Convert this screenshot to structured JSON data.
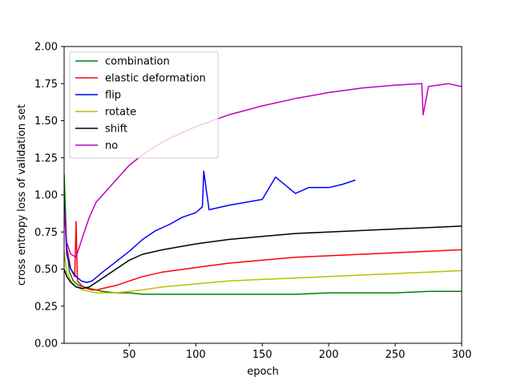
{
  "chart_data": {
    "type": "line",
    "title": "",
    "xlabel": "epoch",
    "ylabel": "cross entropy loss of validation set",
    "xlim": [
      1,
      300
    ],
    "ylim": [
      0.0,
      2.0
    ],
    "xticks": [
      50,
      100,
      150,
      200,
      250,
      300
    ],
    "xtick_labels": [
      "50",
      "100",
      "150",
      "200",
      "250",
      "300"
    ],
    "yticks": [
      0.0,
      0.25,
      0.5,
      0.75,
      1.0,
      1.25,
      1.5,
      1.75,
      2.0
    ],
    "ytick_labels": [
      "0.00",
      "0.25",
      "0.50",
      "0.75",
      "1.00",
      "1.25",
      "1.50",
      "1.75",
      "2.00"
    ],
    "grid": false,
    "legend_position": "upper-left",
    "series": [
      {
        "name": "combination",
        "color": "#008000",
        "x": [
          1,
          3,
          5,
          8,
          12,
          16,
          20,
          25,
          30,
          40,
          50,
          60,
          75,
          100,
          125,
          150,
          175,
          200,
          225,
          250,
          275,
          300
        ],
        "y": [
          1.14,
          0.65,
          0.48,
          0.42,
          0.39,
          0.38,
          0.37,
          0.36,
          0.35,
          0.34,
          0.34,
          0.33,
          0.33,
          0.33,
          0.33,
          0.33,
          0.33,
          0.34,
          0.34,
          0.34,
          0.35,
          0.35
        ]
      },
      {
        "name": "elastic deformation",
        "color": "#ff0000",
        "x": [
          1,
          3,
          6,
          9,
          10,
          11,
          14,
          18,
          22,
          26,
          30,
          40,
          50,
          60,
          75,
          100,
          125,
          150,
          175,
          200,
          225,
          250,
          275,
          300
        ],
        "y": [
          0.95,
          0.65,
          0.5,
          0.45,
          0.82,
          0.42,
          0.39,
          0.37,
          0.36,
          0.36,
          0.37,
          0.39,
          0.42,
          0.45,
          0.48,
          0.51,
          0.54,
          0.56,
          0.58,
          0.59,
          0.6,
          0.61,
          0.62,
          0.63
        ]
      },
      {
        "name": "flip",
        "color": "#0000ff",
        "x": [
          1,
          3,
          6,
          10,
          14,
          18,
          22,
          26,
          30,
          40,
          50,
          60,
          70,
          80,
          90,
          100,
          105,
          106,
          110,
          125,
          150,
          160,
          175,
          185,
          200,
          210,
          220
        ],
        "y": [
          0.95,
          0.6,
          0.5,
          0.45,
          0.42,
          0.41,
          0.42,
          0.45,
          0.48,
          0.55,
          0.62,
          0.7,
          0.76,
          0.8,
          0.85,
          0.88,
          0.92,
          1.16,
          0.9,
          0.93,
          0.97,
          1.12,
          1.01,
          1.05,
          1.05,
          1.07,
          1.1
        ]
      },
      {
        "name": "rotate",
        "color": "#bfbf00",
        "x": [
          1,
          3,
          6,
          10,
          15,
          20,
          25,
          30,
          40,
          50,
          60,
          75,
          100,
          125,
          150,
          175,
          200,
          225,
          250,
          275,
          300
        ],
        "y": [
          0.62,
          0.48,
          0.42,
          0.38,
          0.36,
          0.35,
          0.34,
          0.34,
          0.34,
          0.35,
          0.36,
          0.38,
          0.4,
          0.42,
          0.43,
          0.44,
          0.45,
          0.46,
          0.47,
          0.48,
          0.49
        ]
      },
      {
        "name": "shift",
        "color": "#000000",
        "x": [
          1,
          3,
          6,
          10,
          15,
          20,
          25,
          30,
          40,
          50,
          60,
          75,
          100,
          125,
          150,
          175,
          200,
          225,
          250,
          275,
          300
        ],
        "y": [
          0.5,
          0.45,
          0.41,
          0.38,
          0.37,
          0.38,
          0.41,
          0.44,
          0.5,
          0.56,
          0.6,
          0.63,
          0.67,
          0.7,
          0.72,
          0.74,
          0.75,
          0.76,
          0.77,
          0.78,
          0.79
        ]
      },
      {
        "name": "no",
        "color": "#bf00bf",
        "x": [
          1,
          3,
          6,
          10,
          15,
          20,
          25,
          30,
          40,
          50,
          60,
          70,
          80,
          100,
          125,
          150,
          175,
          200,
          225,
          250,
          270,
          271,
          275,
          290,
          300
        ],
        "y": [
          0.9,
          0.68,
          0.6,
          0.58,
          0.72,
          0.85,
          0.95,
          1.0,
          1.1,
          1.2,
          1.27,
          1.33,
          1.38,
          1.46,
          1.54,
          1.6,
          1.65,
          1.69,
          1.72,
          1.74,
          1.75,
          1.54,
          1.73,
          1.75,
          1.73
        ]
      }
    ]
  }
}
